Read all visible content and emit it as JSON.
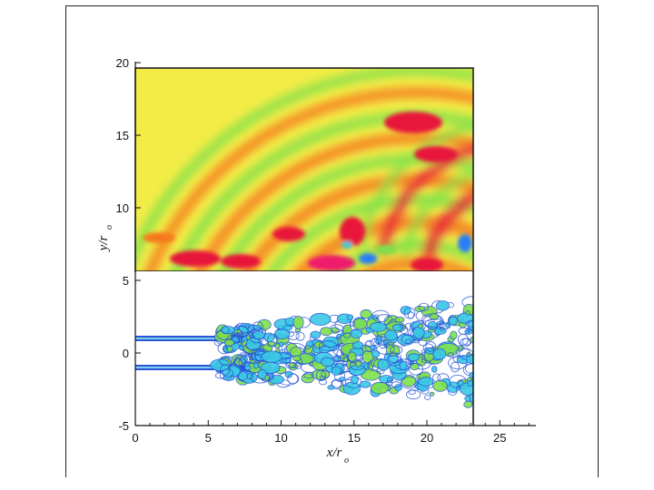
{
  "figure": {
    "top_panel": {
      "name": "acoustic-field",
      "y_range": [
        5.5,
        20
      ]
    },
    "bottom_panel": {
      "name": "vorticity-contours",
      "y_range": [
        -5,
        5
      ]
    },
    "x_axis": {
      "label_main": "x/r",
      "label_sub": "o",
      "range": [
        0,
        27.5
      ],
      "ticks": [
        0,
        5,
        10,
        15,
        20,
        25
      ],
      "tick_labels": [
        "0",
        "5",
        "10",
        "15",
        "20",
        "25"
      ]
    },
    "y_axis": {
      "label_main": "y/r",
      "label_sub": "o",
      "ticks_top": [
        "20",
        "15",
        "10"
      ],
      "ticks_bottom": [
        "5",
        "0",
        "-5"
      ]
    },
    "colors": {
      "high": "#e8143a",
      "mid_high": "#f47a1c",
      "mid": "#f2ee3c",
      "low_mid": "#7fe04a",
      "low": "#2a7ef5",
      "contour": "#2a56d8"
    }
  }
}
